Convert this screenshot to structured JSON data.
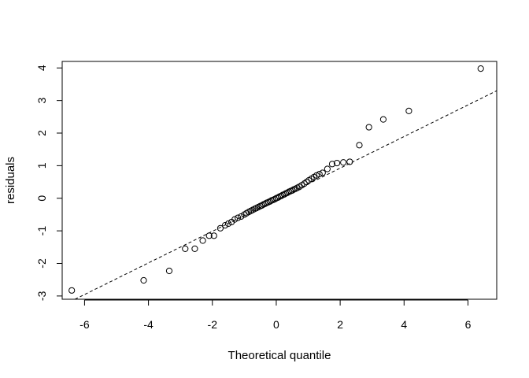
{
  "chart_data": {
    "type": "scatter",
    "title": "",
    "xlabel": "Theoretical quantile",
    "ylabel": "residuals",
    "xlim": [
      -6.7,
      6.9
    ],
    "ylim": [
      -3.1,
      4.2
    ],
    "x_ticks": [
      -6,
      -4,
      -2,
      0,
      2,
      4,
      6
    ],
    "y_ticks": [
      -3,
      -2,
      -1,
      0,
      1,
      2,
      3,
      4
    ],
    "x_tick_labels": [
      "-6",
      "-4",
      "-2",
      "0",
      "2",
      "4",
      "6"
    ],
    "y_tick_labels": [
      "-3",
      "-2",
      "-1",
      "0",
      "1",
      "2",
      "3",
      "4"
    ],
    "grid": false,
    "marker": "open-circle",
    "reference_line": {
      "style": "dashed",
      "points": [
        [
          -6.3,
          -3.1
        ],
        [
          6.9,
          3.3
        ]
      ]
    },
    "points": [
      [
        -6.4,
        -2.83
      ],
      [
        -4.15,
        -2.52
      ],
      [
        -3.35,
        -2.23
      ],
      [
        -2.85,
        -1.55
      ],
      [
        -2.55,
        -1.55
      ],
      [
        -2.3,
        -1.3
      ],
      [
        -2.1,
        -1.15
      ],
      [
        -1.95,
        -1.15
      ],
      [
        -1.75,
        -0.92
      ],
      [
        -1.6,
        -0.83
      ],
      [
        -1.5,
        -0.78
      ],
      [
        -1.4,
        -0.73
      ],
      [
        -1.3,
        -0.65
      ],
      [
        -1.2,
        -0.6
      ],
      [
        -1.1,
        -0.56
      ],
      [
        -1.0,
        -0.5
      ],
      [
        -0.93,
        -0.46
      ],
      [
        -0.86,
        -0.42
      ],
      [
        -0.8,
        -0.39
      ],
      [
        -0.74,
        -0.36
      ],
      [
        -0.68,
        -0.33
      ],
      [
        -0.62,
        -0.3
      ],
      [
        -0.56,
        -0.27
      ],
      [
        -0.5,
        -0.24
      ],
      [
        -0.45,
        -0.22
      ],
      [
        -0.4,
        -0.19
      ],
      [
        -0.35,
        -0.17
      ],
      [
        -0.3,
        -0.14
      ],
      [
        -0.25,
        -0.12
      ],
      [
        -0.2,
        -0.1
      ],
      [
        -0.15,
        -0.07
      ],
      [
        -0.1,
        -0.05
      ],
      [
        -0.05,
        -0.03
      ],
      [
        0.0,
        0.0
      ],
      [
        0.05,
        0.02
      ],
      [
        0.1,
        0.05
      ],
      [
        0.15,
        0.07
      ],
      [
        0.2,
        0.1
      ],
      [
        0.25,
        0.12
      ],
      [
        0.3,
        0.15
      ],
      [
        0.35,
        0.17
      ],
      [
        0.4,
        0.2
      ],
      [
        0.45,
        0.22
      ],
      [
        0.5,
        0.24
      ],
      [
        0.55,
        0.27
      ],
      [
        0.6,
        0.29
      ],
      [
        0.66,
        0.32
      ],
      [
        0.72,
        0.35
      ],
      [
        0.8,
        0.4
      ],
      [
        0.88,
        0.45
      ],
      [
        0.95,
        0.5
      ],
      [
        1.02,
        0.55
      ],
      [
        1.1,
        0.6
      ],
      [
        1.18,
        0.65
      ],
      [
        1.26,
        0.7
      ],
      [
        1.35,
        0.74
      ],
      [
        1.45,
        0.78
      ],
      [
        1.6,
        0.9
      ],
      [
        1.75,
        1.05
      ],
      [
        1.9,
        1.08
      ],
      [
        2.1,
        1.1
      ],
      [
        2.3,
        1.12
      ],
      [
        2.6,
        1.63
      ],
      [
        2.9,
        2.18
      ],
      [
        3.35,
        2.42
      ],
      [
        4.15,
        2.68
      ],
      [
        6.4,
        3.98
      ]
    ]
  }
}
